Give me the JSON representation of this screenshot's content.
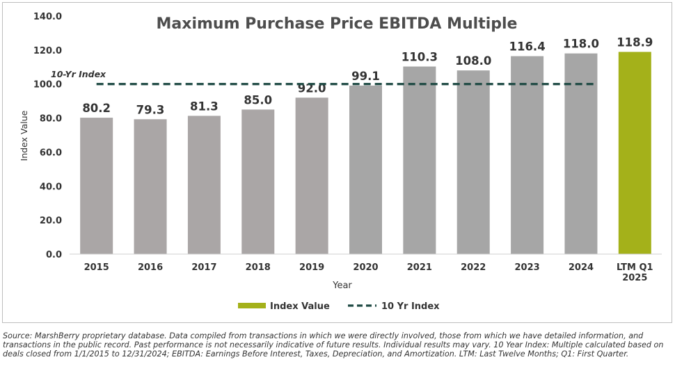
{
  "colors": {
    "bar_default": "#aaa6a6",
    "bar_dark": "#a6a6a6",
    "bar_highlight": "#a4b11a",
    "index_line": "#1f4a44",
    "title": "#4d4d4d",
    "text": "#333333"
  },
  "chart_data": {
    "type": "bar",
    "title": "Maximum Purchase Price EBITDA Multiple",
    "xlabel": "Year",
    "ylabel": "Index Value",
    "ylim": [
      0,
      140
    ],
    "yticks": [
      "0.0",
      "20.0",
      "40.0",
      "60.0",
      "80.0",
      "100.0",
      "120.0",
      "140.0"
    ],
    "grid": false,
    "legend_position": "bottom",
    "categories": [
      "2015",
      "2016",
      "2017",
      "2018",
      "2019",
      "2020",
      "2021",
      "2022",
      "2023",
      "2024",
      "LTM Q1 2025"
    ],
    "series": [
      {
        "name": "Index Value",
        "values": [
          80.2,
          79.3,
          81.3,
          85.0,
          92.0,
          99.1,
          110.3,
          108.0,
          116.4,
          118.0,
          118.9
        ],
        "labels": [
          "80.2",
          "79.3",
          "81.3",
          "85.0",
          "92.0",
          "99.1",
          "110.3",
          "108.0",
          "116.4",
          "118.0",
          "118.9"
        ]
      },
      {
        "name": "10 Yr Index",
        "type": "line",
        "style": "dashed",
        "value": 100.0,
        "span": [
          "2015",
          "2024"
        ]
      }
    ],
    "annotations": [
      {
        "text": "10-Yr Index",
        "target": "10 Yr Index"
      }
    ]
  },
  "source_note": "Source: MarshBerry proprietary database. Data compiled from transactions in which we were directly involved, those from which we have detailed information, and transactions in the public record. Past performance is not necessarily indicative of future results. Individual results may vary. 10 Year Index: Multiple calculated based on deals closed from 1/1/2015 to 12/31/2024; EBITDA: Earnings Before Interest, Taxes, Depreciation, and Amortization. LTM: Last Twelve Months; Q1: First Quarter."
}
